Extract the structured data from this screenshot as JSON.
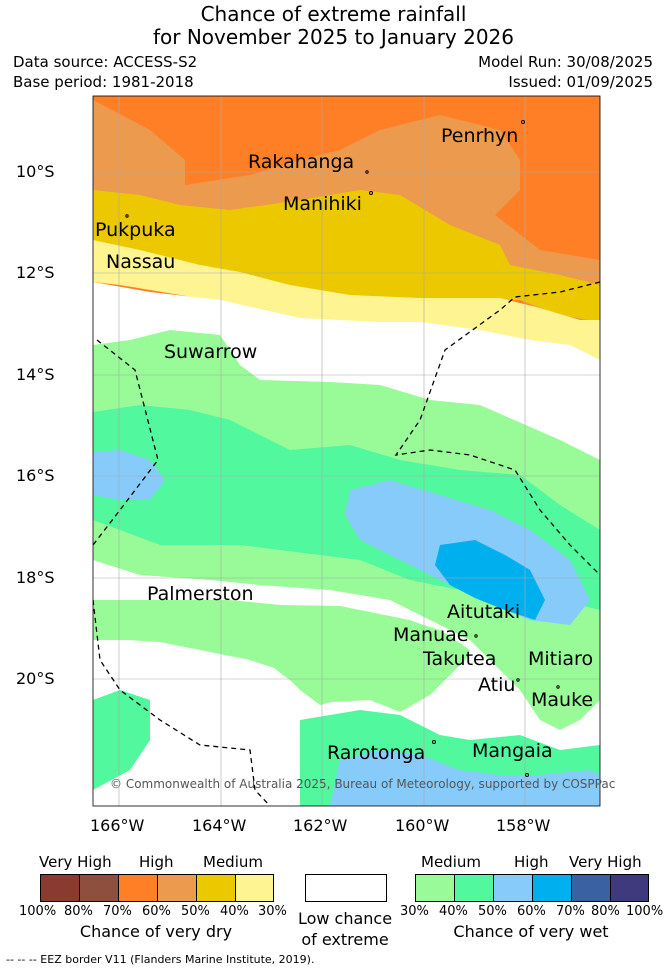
{
  "title": {
    "line1": "Chance of extreme rainfall",
    "line2": "for November 2025 to January 2026"
  },
  "meta": {
    "data_source": "Data source: ACCESS-S2",
    "base_period": "Base period: 1981-2018",
    "model_run": "Model Run: 30/08/2025",
    "issued": "Issued: 01/09/2025"
  },
  "map": {
    "latitude_labels": [
      "10°S",
      "12°S",
      "14°S",
      "16°S",
      "18°S",
      "20°S"
    ],
    "longitude_labels": [
      "166°W",
      "164°W",
      "162°W",
      "160°W",
      "158°W"
    ],
    "places": {
      "penrhyn": "Penrhyn",
      "rakahanga": "Rakahanga",
      "manihiki": "Manihiki",
      "pukapuka": "Pukpuka",
      "nassau": "Nassau",
      "suwarrow": "Suwarrow",
      "palmerston": "Palmerston",
      "aitutaki": "Aitutaki",
      "manuae": "Manuae",
      "takutea": "Takutea",
      "mitiaro": "Mitiaro",
      "atiu": "Atiu",
      "mauke": "Mauke",
      "rarotonga": "Rarotonga",
      "mangaia": "Mangaia"
    },
    "credit": "© Commonwealth of Australia 2025, Bureau of Meteorology, supported by COSPPac"
  },
  "legend": {
    "dry": {
      "headings": [
        "Very High",
        "High",
        "Medium"
      ],
      "percents": [
        "100%",
        "80%",
        "70%",
        "60%",
        "50%",
        "40%",
        "30%"
      ],
      "caption": "Chance of very dry",
      "colors": [
        "#8b3a30",
        "#8e4f3e",
        "#ff7f27",
        "#ec9a4d",
        "#ecc800",
        "#fef491"
      ]
    },
    "low": {
      "caption_line1": "Low chance",
      "caption_line2": "of extreme",
      "color": "#ffffff"
    },
    "wet": {
      "headings": [
        "Medium",
        "High",
        "Very High"
      ],
      "percents": [
        "30%",
        "40%",
        "50%",
        "60%",
        "70%",
        "80%",
        "100%"
      ],
      "caption": "Chance of very wet",
      "colors": [
        "#98fb98",
        "#52f89d",
        "#87cbfa",
        "#00b0ee",
        "#3a62a3",
        "#3f3a7d"
      ]
    }
  },
  "footnote": "--  --  -- EEZ border V11 (Flanders Marine Institute, 2019)."
}
